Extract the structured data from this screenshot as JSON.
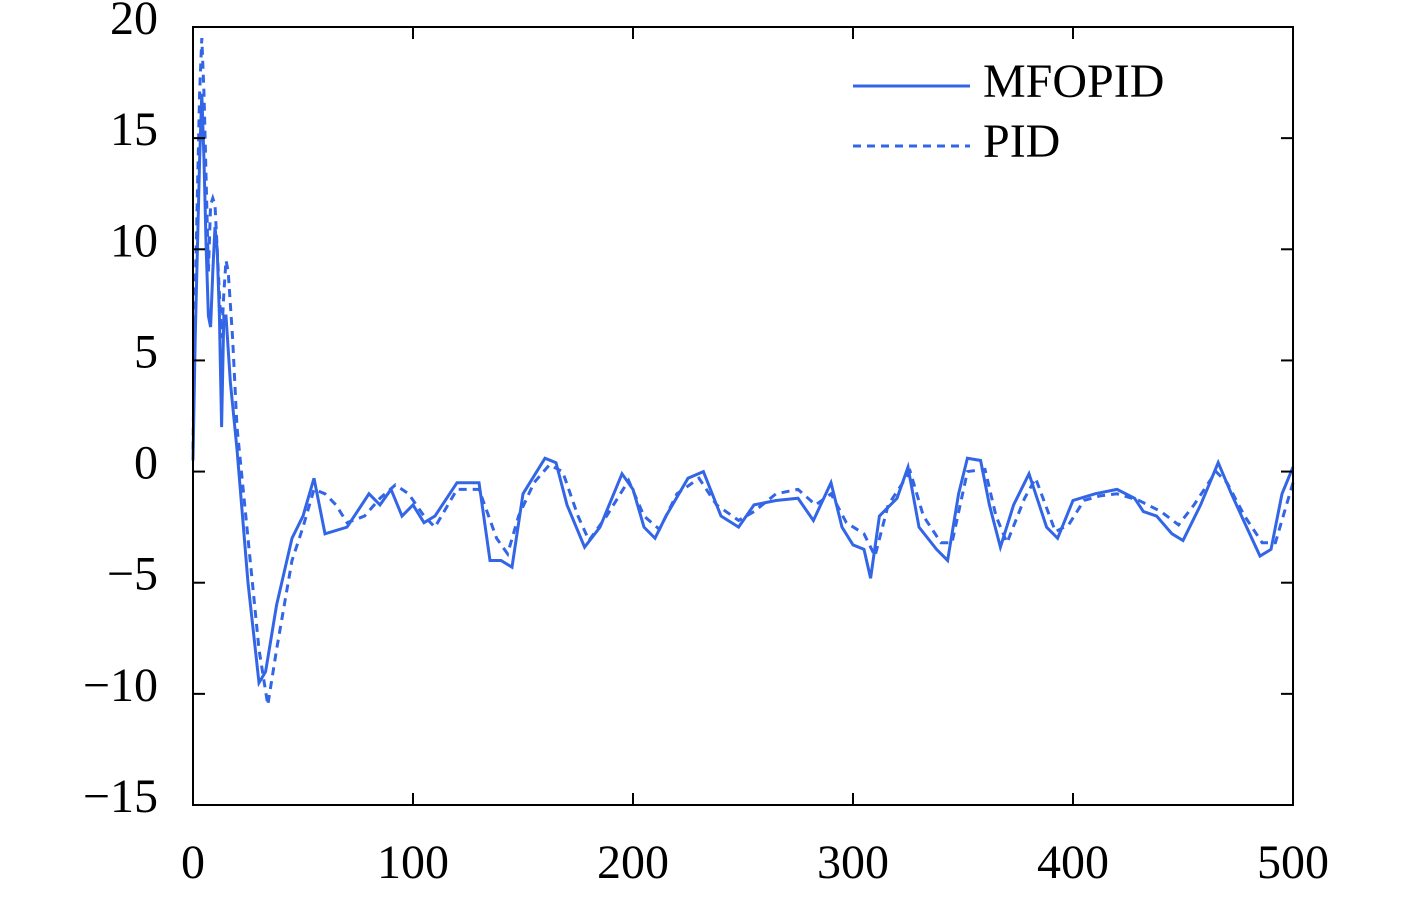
{
  "chart_data": {
    "type": "line",
    "xlim": [
      0,
      500
    ],
    "xticks": [
      0,
      100,
      200,
      300,
      400,
      500
    ],
    "ylim": [
      -15,
      20
    ],
    "yticks": [
      {
        "value": -15,
        "label": "−15"
      },
      {
        "value": -10,
        "label": "−10"
      },
      {
        "value": -5,
        "label": "−5"
      },
      0,
      5,
      10,
      15,
      20
    ],
    "legend": "top-right",
    "series": [
      {
        "name": "MFOPID",
        "color": "#3366e6",
        "dash": "solid",
        "x": [
          0,
          1,
          3,
          4,
          5,
          6,
          7,
          8,
          9,
          10,
          11,
          12,
          13,
          14,
          15,
          17,
          20,
          25,
          30,
          33,
          38,
          45,
          50,
          55,
          60,
          70,
          80,
          85,
          90,
          95,
          100,
          105,
          110,
          120,
          130,
          135,
          140,
          145,
          150,
          160,
          165,
          170,
          178,
          185,
          195,
          200,
          205,
          210,
          215,
          225,
          232,
          240,
          248,
          255,
          265,
          275,
          282,
          290,
          295,
          300,
          305,
          308,
          312,
          320,
          325,
          330,
          338,
          343,
          348,
          352,
          358,
          362,
          367,
          373,
          380,
          388,
          393,
          400,
          410,
          420,
          428,
          432,
          438,
          445,
          450,
          458,
          466,
          472,
          478,
          485,
          490,
          495,
          500
        ],
        "values": [
          0.5,
          6,
          14,
          17,
          14,
          10,
          7,
          6.5,
          9,
          11,
          10,
          7,
          2,
          7,
          7,
          4,
          1,
          -5,
          -9.5,
          -9,
          -6,
          -3,
          -2,
          -0.3,
          -2.8,
          -2.5,
          -1,
          -1.5,
          -0.8,
          -2,
          -1.5,
          -2.3,
          -2,
          -0.5,
          -0.5,
          -4,
          -4,
          -4.3,
          -1,
          0.6,
          0.4,
          -1.5,
          -3.4,
          -2.5,
          -0.1,
          -0.8,
          -2.5,
          -3,
          -2,
          -0.3,
          0,
          -2,
          -2.5,
          -1.5,
          -1.3,
          -1.2,
          -2.2,
          -0.5,
          -2.5,
          -3.3,
          -3.5,
          -4.8,
          -2,
          -1.2,
          0.2,
          -2.5,
          -3.5,
          -4,
          -1,
          0.6,
          0.5,
          -1.5,
          -3.4,
          -1.5,
          -0.1,
          -2.5,
          -3,
          -1.3,
          -1,
          -0.8,
          -1.2,
          -1.8,
          -2,
          -2.8,
          -3.1,
          -1.5,
          0.4,
          -1,
          -2.3,
          -3.8,
          -3.5,
          -1,
          0.2
        ]
      },
      {
        "name": "PID",
        "color": "#3366e6",
        "dash": "dashed",
        "x": [
          0,
          1,
          3,
          4,
          5,
          6,
          7,
          8,
          9,
          10,
          11,
          12,
          13,
          14,
          15,
          16,
          18,
          20,
          25,
          30,
          34,
          38,
          45,
          50,
          55,
          60,
          65,
          70,
          78,
          85,
          92,
          98,
          105,
          110,
          120,
          130,
          138,
          143,
          148,
          155,
          162,
          168,
          175,
          180,
          188,
          198,
          205,
          212,
          220,
          230,
          238,
          248,
          255,
          265,
          275,
          283,
          290,
          297,
          305,
          310,
          316,
          326,
          332,
          340,
          345,
          352,
          360,
          365,
          370,
          378,
          383,
          392,
          398,
          405,
          412,
          420,
          430,
          440,
          448,
          455,
          465,
          470,
          478,
          486,
          492,
          500
        ],
        "values": [
          1,
          8,
          17,
          19.5,
          17,
          13,
          9,
          12,
          12.3,
          12,
          10,
          8,
          6,
          8,
          9.5,
          9,
          6,
          2,
          -3,
          -8,
          -10.5,
          -8,
          -4,
          -2.5,
          -0.8,
          -1,
          -1.5,
          -2.3,
          -2,
          -1.2,
          -0.6,
          -1,
          -2,
          -2.5,
          -0.8,
          -0.8,
          -3,
          -3.7,
          -2,
          -0.5,
          0.3,
          0,
          -2,
          -3.1,
          -2,
          -0.4,
          -2,
          -2.6,
          -1,
          -0.3,
          -1.5,
          -2.2,
          -1.8,
          -1,
          -0.8,
          -1.5,
          -1,
          -2.3,
          -2.8,
          -3.8,
          -1.5,
          0,
          -2,
          -3.2,
          -3.2,
          0,
          0.1,
          -2,
          -3.2,
          -1.2,
          -0.3,
          -2.7,
          -2.4,
          -1.3,
          -1.1,
          -1,
          -1.3,
          -1.8,
          -2.4,
          -1.5,
          0,
          -0.5,
          -2,
          -3.2,
          -3.2,
          -0.5
        ]
      }
    ]
  }
}
